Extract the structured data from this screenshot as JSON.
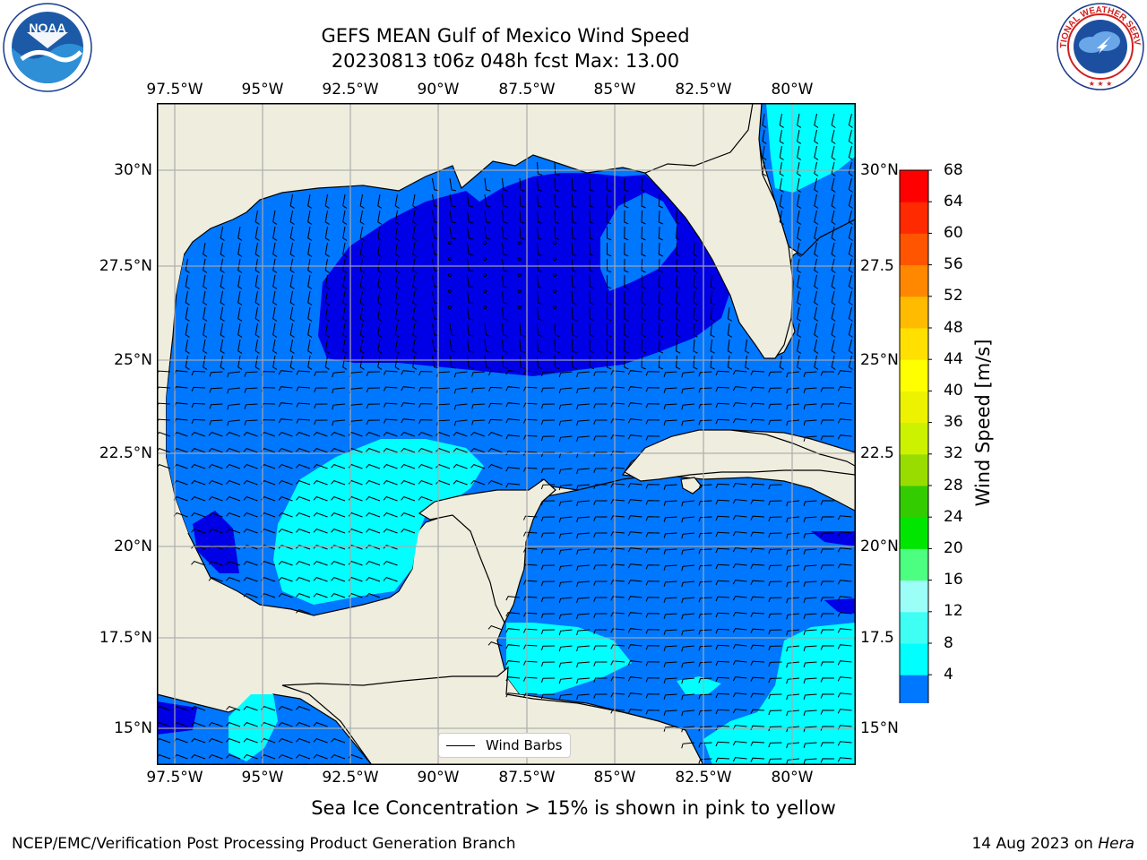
{
  "title": {
    "line1": "GEFS MEAN Gulf of Mexico Wind Speed",
    "line2": "20230813 t06z 048h fcst   Max: 13.00"
  },
  "logos": {
    "left": {
      "text": "NOAA",
      "ring_text": "NATIONAL OCEANIC AND ATMOSPHERIC ADMINISTRATION · U.S. DEPARTMENT OF COMMERCE"
    },
    "right": {
      "ring_text": "NATIONAL WEATHER SERVICE"
    }
  },
  "map": {
    "lon_range": [
      -98.5,
      -78.7
    ],
    "lat_range": [
      14.0,
      31.8
    ],
    "lon_ticks": [
      "97.5°W",
      "95°W",
      "92.5°W",
      "90°W",
      "87.5°W",
      "85°W",
      "82.5°W",
      "80°W"
    ],
    "lat_ticks_left": [
      "30°N",
      "27.5°N",
      "25°N",
      "22.5°N",
      "20°N",
      "17.5°N",
      "15°N"
    ],
    "lat_ticks_right": [
      "30°N",
      "27.5",
      "25°N",
      "22.5",
      "20°N",
      "17.5",
      "15°N"
    ],
    "grid": true,
    "land_color": "#efedde",
    "legend": {
      "label": "Wind Barbs",
      "placement": "bottom-center"
    }
  },
  "colorbar": {
    "label": "Wind Speed [m/s]",
    "ticks": [
      "68",
      "64",
      "60",
      "56",
      "52",
      "48",
      "44",
      "40",
      "36",
      "32",
      "28",
      "24",
      "20",
      "16",
      "12",
      "8",
      "4"
    ],
    "extend": "min",
    "colors": [
      "#0000e6",
      "#0077ff",
      "#00ffff",
      "#3ffff5",
      "#9cfff7",
      "#4dff80",
      "#00e600",
      "#33cc00",
      "#99dd00",
      "#ccf200",
      "#ecf200",
      "#ffff00",
      "#ffe000",
      "#ffbb00",
      "#ff8800",
      "#ff5500",
      "#ff2a00",
      "#ff0000"
    ]
  },
  "note": "Sea Ice Concentration > 15% is shown in pink to yellow",
  "footer": {
    "left": "NCEP/EMC/Verification Post Processing Product Generation Branch",
    "right_date": "14 Aug 2023 on ",
    "right_host": "Hera"
  }
}
